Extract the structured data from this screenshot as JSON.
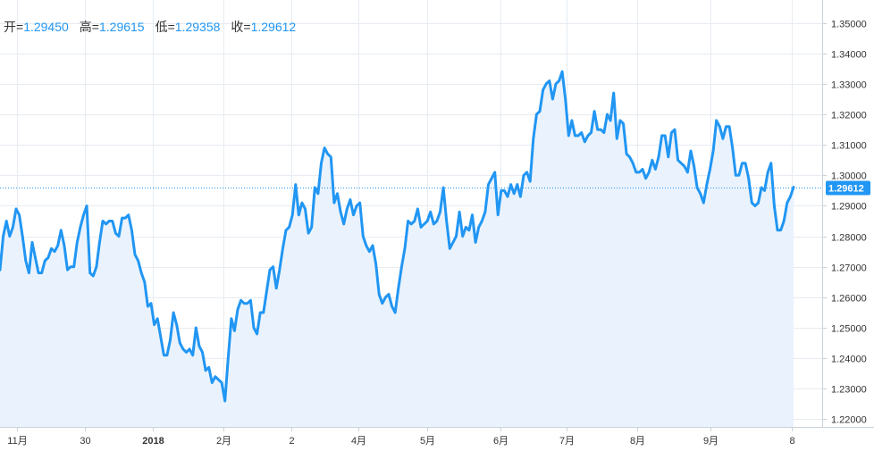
{
  "ohlc": {
    "open_label": "开=",
    "open_value": "1.29450",
    "high_label": "高=",
    "high_value": "1.29615",
    "low_label": "低=",
    "low_value": "1.29358",
    "close_label": "收=",
    "close_value": "1.29612"
  },
  "colors": {
    "line": "#2196f3",
    "fill": "#eaf3fd",
    "grid": "#e6ecf2",
    "badge": "#2196f3"
  },
  "chart_data": {
    "type": "area",
    "ylim": [
      1.2175,
      1.3575
    ],
    "yticks": [
      "1.22000",
      "1.23000",
      "1.24000",
      "1.25000",
      "1.26000",
      "1.27000",
      "1.28000",
      "1.29000",
      "1.30000",
      "1.31000",
      "1.32000",
      "1.33000",
      "1.34000",
      "1.35000"
    ],
    "xticks": [
      {
        "label": "11月",
        "bold": false
      },
      {
        "label": "30",
        "bold": false
      },
      {
        "label": "2018",
        "bold": true
      },
      {
        "label": "2月",
        "bold": false
      },
      {
        "label": "2",
        "bold": false
      },
      {
        "label": "4月",
        "bold": false
      },
      {
        "label": "5月",
        "bold": false
      },
      {
        "label": "6月",
        "bold": false
      },
      {
        "label": "7月",
        "bold": false
      },
      {
        "label": "8月",
        "bold": false
      },
      {
        "label": "9月",
        "bold": false
      },
      {
        "label": "8",
        "bold": false
      }
    ],
    "last_price": "1.29612",
    "values": [
      1.269,
      1.28,
      1.285,
      1.28,
      1.283,
      1.289,
      1.287,
      1.28,
      1.272,
      1.268,
      1.278,
      1.273,
      1.268,
      1.268,
      1.272,
      1.273,
      1.276,
      1.275,
      1.277,
      1.282,
      1.277,
      1.269,
      1.27,
      1.27,
      1.278,
      1.283,
      1.287,
      1.29,
      1.268,
      1.267,
      1.27,
      1.278,
      1.285,
      1.284,
      1.285,
      1.285,
      1.281,
      1.28,
      1.286,
      1.286,
      1.287,
      1.282,
      1.274,
      1.272,
      1.268,
      1.265,
      1.257,
      1.258,
      1.251,
      1.253,
      1.247,
      1.241,
      1.241,
      1.246,
      1.255,
      1.251,
      1.245,
      1.243,
      1.242,
      1.243,
      1.241,
      1.25,
      1.244,
      1.242,
      1.236,
      1.237,
      1.232,
      1.234,
      1.233,
      1.232,
      1.226,
      1.24,
      1.253,
      1.249,
      1.256,
      1.259,
      1.258,
      1.258,
      1.259,
      1.25,
      1.248,
      1.255,
      1.255,
      1.262,
      1.269,
      1.27,
      1.263,
      1.269,
      1.276,
      1.282,
      1.283,
      1.287,
      1.297,
      1.287,
      1.291,
      1.289,
      1.281,
      1.283,
      1.296,
      1.294,
      1.304,
      1.309,
      1.307,
      1.306,
      1.291,
      1.294,
      1.288,
      1.284,
      1.289,
      1.292,
      1.287,
      1.29,
      1.291,
      1.28,
      1.277,
      1.275,
      1.277,
      1.271,
      1.261,
      1.258,
      1.26,
      1.261,
      1.257,
      1.255,
      1.263,
      1.27,
      1.276,
      1.285,
      1.284,
      1.285,
      1.289,
      1.283,
      1.284,
      1.285,
      1.288,
      1.284,
      1.285,
      1.288,
      1.296,
      1.285,
      1.276,
      1.278,
      1.28,
      1.288,
      1.28,
      1.283,
      1.282,
      1.287,
      1.278,
      1.283,
      1.285,
      1.288,
      1.297,
      1.299,
      1.301,
      1.287,
      1.295,
      1.295,
      1.293,
      1.297,
      1.294,
      1.297,
      1.293,
      1.3,
      1.301,
      1.298,
      1.312,
      1.32,
      1.321,
      1.328,
      1.33,
      1.331,
      1.325,
      1.33,
      1.331,
      1.334,
      1.325,
      1.313,
      1.318,
      1.313,
      1.313,
      1.314,
      1.311,
      1.313,
      1.314,
      1.321,
      1.315,
      1.315,
      1.314,
      1.32,
      1.318,
      1.327,
      1.312,
      1.318,
      1.317,
      1.307,
      1.306,
      1.304,
      1.301,
      1.301,
      1.302,
      1.299,
      1.301,
      1.305,
      1.302,
      1.306,
      1.313,
      1.313,
      1.306,
      1.314,
      1.315,
      1.305,
      1.304,
      1.303,
      1.301,
      1.308,
      1.303,
      1.296,
      1.294,
      1.291,
      1.297,
      1.302,
      1.308,
      1.318,
      1.316,
      1.312,
      1.316,
      1.316,
      1.309,
      1.3,
      1.3,
      1.304,
      1.304,
      1.299,
      1.291,
      1.29,
      1.291,
      1.296,
      1.295,
      1.301,
      1.304,
      1.29,
      1.282,
      1.282,
      1.285,
      1.291,
      1.293,
      1.2961
    ]
  }
}
